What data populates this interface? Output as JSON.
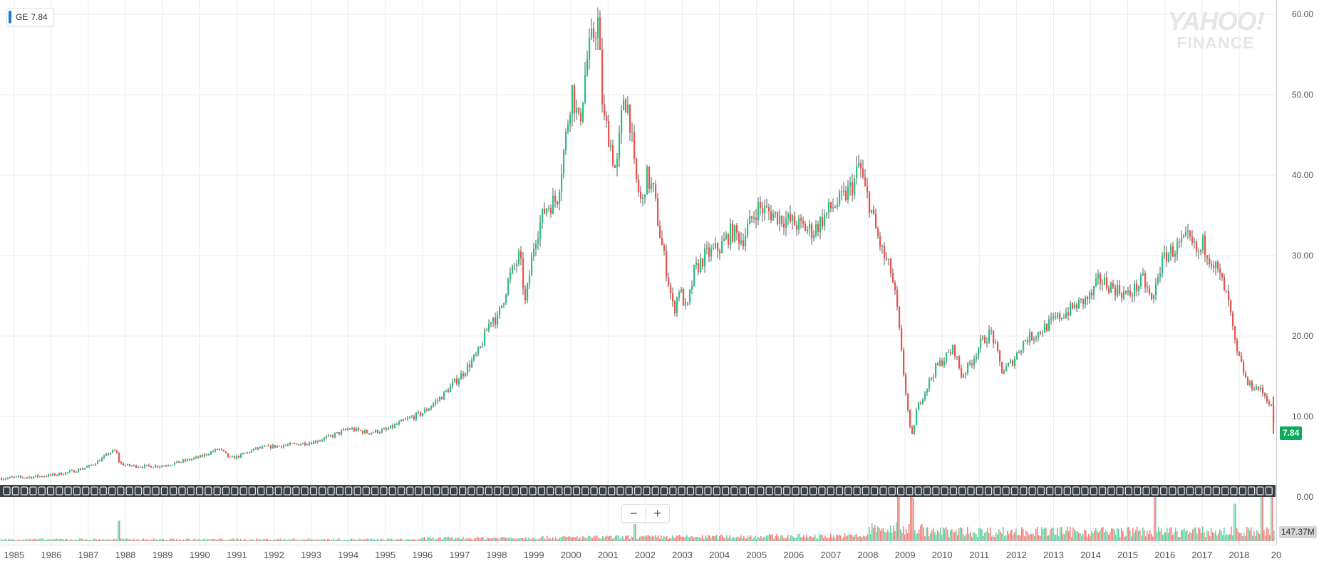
{
  "legend": {
    "symbol": "GE",
    "value": "7.84"
  },
  "watermark": {
    "line1": "YAHOO!",
    "line2": "FINANCE"
  },
  "price_badge": "7.84",
  "volume_badge": "147.37M",
  "zoom": {
    "minus": "−",
    "plus": "+"
  },
  "colors": {
    "up": "#26c281",
    "down": "#f0504a",
    "wick": "#333333",
    "grid": "#ececec",
    "event_bar": "#3b4046",
    "price_badge_bg": "#0bab59",
    "legend_accent": "#1a7bd4"
  },
  "chart_data": {
    "type": "candlestick",
    "symbol": "GE",
    "title": "",
    "xlabel": "",
    "ylabel": "",
    "ylim": [
      0,
      62
    ],
    "y_ticks": [
      "0.00",
      "10.00",
      "20.00",
      "30.00",
      "40.00",
      "50.00",
      "60.00"
    ],
    "x_ticks": [
      "1985",
      "1986",
      "1987",
      "1988",
      "1989",
      "1990",
      "1991",
      "1992",
      "1993",
      "1994",
      "1995",
      "1996",
      "1997",
      "1998",
      "1999",
      "2000",
      "2001",
      "2002",
      "2003",
      "2004",
      "2005",
      "2006",
      "2007",
      "2008",
      "2009",
      "2010",
      "2011",
      "2012",
      "2013",
      "2014",
      "2015",
      "2016",
      "2017",
      "2018",
      "20"
    ],
    "x_range": [
      1984.62,
      2019.0
    ],
    "last_price": 7.84,
    "last_volume": "147.37M",
    "grid": true,
    "price_series": [
      {
        "x": 1984.6,
        "y": 2.3
      },
      {
        "x": 1985.0,
        "y": 2.4
      },
      {
        "x": 1985.5,
        "y": 2.5
      },
      {
        "x": 1986.0,
        "y": 2.7
      },
      {
        "x": 1986.5,
        "y": 3.1
      },
      {
        "x": 1987.0,
        "y": 3.8
      },
      {
        "x": 1987.3,
        "y": 4.6
      },
      {
        "x": 1987.55,
        "y": 5.5
      },
      {
        "x": 1987.72,
        "y": 5.8
      },
      {
        "x": 1987.82,
        "y": 4.2
      },
      {
        "x": 1988.0,
        "y": 3.9
      },
      {
        "x": 1988.5,
        "y": 3.8
      },
      {
        "x": 1989.0,
        "y": 3.9
      },
      {
        "x": 1989.5,
        "y": 4.4
      },
      {
        "x": 1990.0,
        "y": 5.0
      },
      {
        "x": 1990.5,
        "y": 6.0
      },
      {
        "x": 1990.8,
        "y": 4.8
      },
      {
        "x": 1991.0,
        "y": 5.0
      },
      {
        "x": 1991.5,
        "y": 6.0
      },
      {
        "x": 1992.0,
        "y": 6.3
      },
      {
        "x": 1992.5,
        "y": 6.5
      },
      {
        "x": 1993.0,
        "y": 6.8
      },
      {
        "x": 1993.5,
        "y": 7.5
      },
      {
        "x": 1994.0,
        "y": 8.5
      },
      {
        "x": 1994.5,
        "y": 8.0
      },
      {
        "x": 1995.0,
        "y": 8.3
      },
      {
        "x": 1995.5,
        "y": 9.5
      },
      {
        "x": 1996.0,
        "y": 10.5
      },
      {
        "x": 1996.5,
        "y": 12.5
      },
      {
        "x": 1997.0,
        "y": 15.0
      },
      {
        "x": 1997.5,
        "y": 18.0
      },
      {
        "x": 1997.85,
        "y": 22.5
      },
      {
        "x": 1998.0,
        "y": 22.0
      },
      {
        "x": 1998.3,
        "y": 27.0
      },
      {
        "x": 1998.6,
        "y": 30.0
      },
      {
        "x": 1998.75,
        "y": 24.0
      },
      {
        "x": 1999.0,
        "y": 32.0
      },
      {
        "x": 1999.3,
        "y": 36.0
      },
      {
        "x": 1999.6,
        "y": 37.0
      },
      {
        "x": 1999.85,
        "y": 45.0
      },
      {
        "x": 2000.0,
        "y": 51.0
      },
      {
        "x": 2000.2,
        "y": 46.0
      },
      {
        "x": 2000.4,
        "y": 54.0
      },
      {
        "x": 2000.7,
        "y": 59.5
      },
      {
        "x": 2000.85,
        "y": 47.0
      },
      {
        "x": 2001.0,
        "y": 45.0
      },
      {
        "x": 2001.2,
        "y": 40.0
      },
      {
        "x": 2001.4,
        "y": 50.0
      },
      {
        "x": 2001.55,
        "y": 48.0
      },
      {
        "x": 2001.7,
        "y": 40.0
      },
      {
        "x": 2001.9,
        "y": 36.0
      },
      {
        "x": 2002.0,
        "y": 40.0
      },
      {
        "x": 2002.2,
        "y": 38.0
      },
      {
        "x": 2002.4,
        "y": 32.0
      },
      {
        "x": 2002.6,
        "y": 27.0
      },
      {
        "x": 2002.75,
        "y": 23.0
      },
      {
        "x": 2002.9,
        "y": 26.0
      },
      {
        "x": 2003.1,
        "y": 23.0
      },
      {
        "x": 2003.3,
        "y": 28.0
      },
      {
        "x": 2003.6,
        "y": 30.0
      },
      {
        "x": 2004.0,
        "y": 31.0
      },
      {
        "x": 2004.3,
        "y": 33.0
      },
      {
        "x": 2004.6,
        "y": 32.0
      },
      {
        "x": 2005.0,
        "y": 36.0
      },
      {
        "x": 2005.5,
        "y": 35.0
      },
      {
        "x": 2006.0,
        "y": 34.0
      },
      {
        "x": 2006.5,
        "y": 33.0
      },
      {
        "x": 2007.0,
        "y": 36.0
      },
      {
        "x": 2007.3,
        "y": 37.0
      },
      {
        "x": 2007.6,
        "y": 39.0
      },
      {
        "x": 2007.75,
        "y": 41.5
      },
      {
        "x": 2007.9,
        "y": 38.0
      },
      {
        "x": 2008.0,
        "y": 37.0
      },
      {
        "x": 2008.2,
        "y": 33.0
      },
      {
        "x": 2008.4,
        "y": 30.0
      },
      {
        "x": 2008.6,
        "y": 28.0
      },
      {
        "x": 2008.75,
        "y": 24.0
      },
      {
        "x": 2008.9,
        "y": 17.0
      },
      {
        "x": 2009.0,
        "y": 13.0
      },
      {
        "x": 2009.15,
        "y": 7.0
      },
      {
        "x": 2009.3,
        "y": 11.0
      },
      {
        "x": 2009.5,
        "y": 13.0
      },
      {
        "x": 2009.8,
        "y": 16.0
      },
      {
        "x": 2010.0,
        "y": 17.0
      },
      {
        "x": 2010.3,
        "y": 18.5
      },
      {
        "x": 2010.5,
        "y": 15.0
      },
      {
        "x": 2010.8,
        "y": 17.0
      },
      {
        "x": 2011.0,
        "y": 19.0
      },
      {
        "x": 2011.3,
        "y": 20.5
      },
      {
        "x": 2011.6,
        "y": 15.5
      },
      {
        "x": 2011.9,
        "y": 17.0
      },
      {
        "x": 2012.2,
        "y": 19.5
      },
      {
        "x": 2012.6,
        "y": 20.5
      },
      {
        "x": 2013.0,
        "y": 22.0
      },
      {
        "x": 2013.5,
        "y": 23.5
      },
      {
        "x": 2014.0,
        "y": 25.0
      },
      {
        "x": 2014.2,
        "y": 27.0
      },
      {
        "x": 2014.6,
        "y": 26.0
      },
      {
        "x": 2015.0,
        "y": 25.0
      },
      {
        "x": 2015.4,
        "y": 27.0
      },
      {
        "x": 2015.65,
        "y": 24.0
      },
      {
        "x": 2015.8,
        "y": 28.0
      },
      {
        "x": 2016.0,
        "y": 30.0
      },
      {
        "x": 2016.3,
        "y": 31.0
      },
      {
        "x": 2016.6,
        "y": 32.0
      },
      {
        "x": 2016.9,
        "y": 30.0
      },
      {
        "x": 2017.0,
        "y": 31.5
      },
      {
        "x": 2017.3,
        "y": 29.0
      },
      {
        "x": 2017.5,
        "y": 27.0
      },
      {
        "x": 2017.7,
        "y": 24.0
      },
      {
        "x": 2017.9,
        "y": 18.0
      },
      {
        "x": 2018.0,
        "y": 17.0
      },
      {
        "x": 2018.2,
        "y": 14.0
      },
      {
        "x": 2018.5,
        "y": 13.5
      },
      {
        "x": 2018.7,
        "y": 12.5
      },
      {
        "x": 2018.85,
        "y": 11.0
      },
      {
        "x": 2018.95,
        "y": 7.84
      }
    ],
    "volume_spikes": [
      {
        "x": 1987.8,
        "v": 0.48
      },
      {
        "x": 2001.7,
        "v": 0.4
      },
      {
        "x": 2008.8,
        "v": 0.85
      },
      {
        "x": 2009.15,
        "v": 0.95
      },
      {
        "x": 2009.2,
        "v": 0.8
      },
      {
        "x": 2015.7,
        "v": 0.93
      },
      {
        "x": 2017.85,
        "v": 0.7
      },
      {
        "x": 2018.6,
        "v": 0.85
      },
      {
        "x": 2018.85,
        "v": 1.0
      }
    ]
  }
}
